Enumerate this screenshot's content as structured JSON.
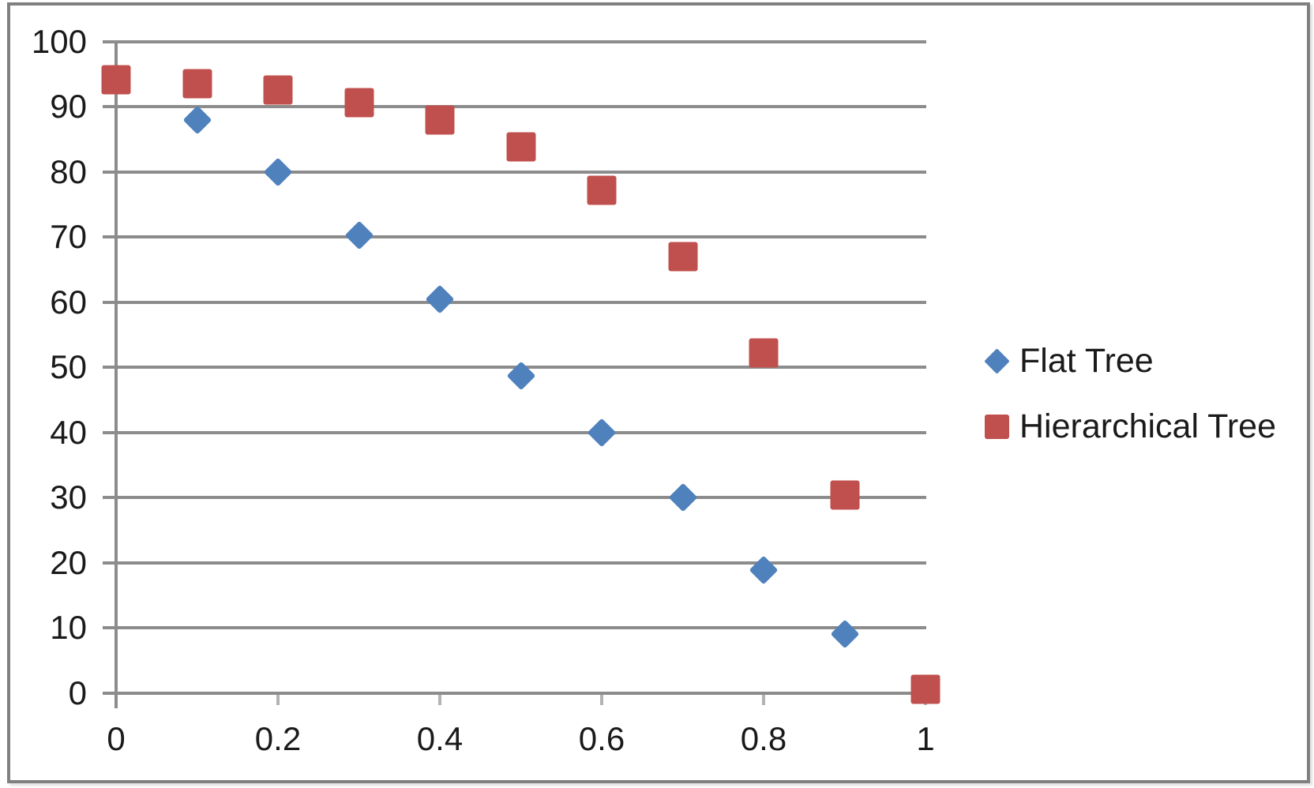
{
  "chart_data": {
    "type": "scatter",
    "title": "",
    "xlabel": "",
    "ylabel": "",
    "xlim": [
      0,
      1
    ],
    "ylim": [
      0,
      100
    ],
    "grid": "horizontal",
    "legend_position": "right",
    "x_tick_values": [
      0,
      0.2,
      0.4,
      0.6,
      0.8,
      1
    ],
    "x_tick_labels": [
      "0",
      "0.2",
      "0.4",
      "0.6",
      "0.8",
      "1"
    ],
    "y_tick_values": [
      0,
      10,
      20,
      30,
      40,
      50,
      60,
      70,
      80,
      90,
      100
    ],
    "y_tick_labels": [
      "0",
      "10",
      "20",
      "30",
      "40",
      "50",
      "60",
      "70",
      "80",
      "90",
      "100"
    ],
    "series": [
      {
        "name": "Flat Tree",
        "marker": "diamond",
        "color": "#4F81BD",
        "x": [
          0.1,
          0.2,
          0.3,
          0.4,
          0.5,
          0.6,
          0.7,
          0.8,
          0.9
        ],
        "y": [
          88,
          80,
          70.3,
          60.5,
          48.7,
          40,
          30,
          18.8,
          9
        ]
      },
      {
        "name": "Hierarchical Tree",
        "marker": "square",
        "color": "#C0504D",
        "x": [
          0,
          0.1,
          0.2,
          0.3,
          0.4,
          0.5,
          0.6,
          0.7,
          0.8,
          0.9,
          1
        ],
        "y": [
          94.2,
          93.6,
          92.6,
          90.7,
          88,
          83.9,
          77.2,
          67,
          52.2,
          30.4,
          0.5
        ]
      }
    ]
  },
  "legend": {
    "items": [
      {
        "label": "Flat Tree",
        "marker": "diamond-icon",
        "color": "#4F81BD"
      },
      {
        "label": "Hierarchical Tree",
        "marker": "square-icon",
        "color": "#C0504D"
      }
    ]
  },
  "colors": {
    "gridline": "#8C8C8C",
    "axis": "#8C8C8C",
    "minor_tick": "#B3B3B3",
    "text": "#1A1A1A",
    "frame_border": "#808080",
    "background": "#FFFFFF",
    "flat_tree": "#4F81BD",
    "hierarchical_tree": "#C0504D"
  }
}
